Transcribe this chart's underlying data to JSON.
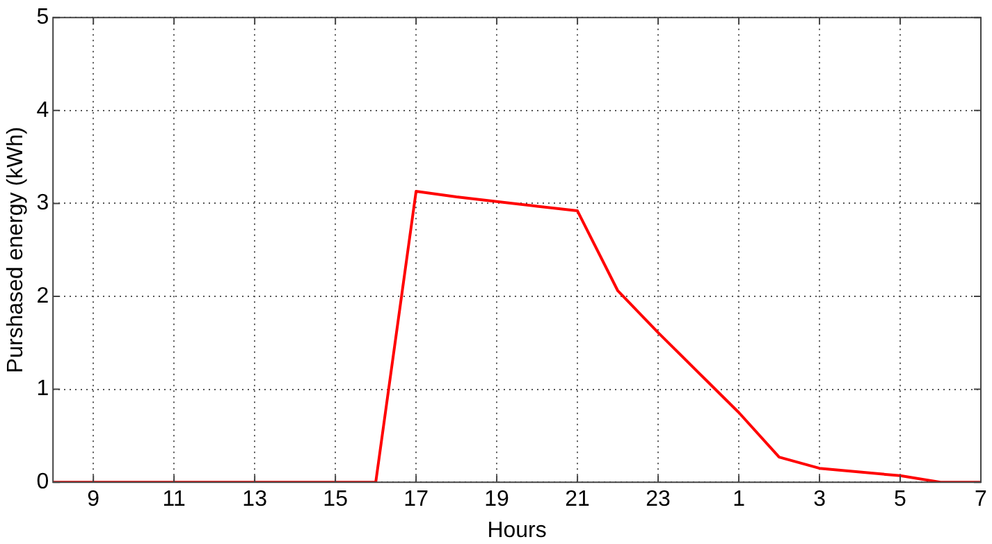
{
  "chart_data": {
    "type": "line",
    "xlabel": "Hours",
    "ylabel": "Purshased energy (kWh)",
    "categories": [
      null,
      "9",
      null,
      "11",
      null,
      "13",
      null,
      "15",
      null,
      "17",
      null,
      "19",
      null,
      "21",
      null,
      "23",
      null,
      "1",
      null,
      "3",
      null,
      "5",
      null,
      "7"
    ],
    "series": [
      {
        "color": "#ff0000",
        "values": [
          0,
          0,
          0,
          0,
          0,
          0,
          0,
          0,
          0,
          3.13,
          3.07,
          3.02,
          2.97,
          2.92,
          2.06,
          1.61,
          1.18,
          0.75,
          0.27,
          0.15,
          0.11,
          0.07,
          0,
          0
        ]
      }
    ],
    "ylim": [
      0,
      5
    ],
    "yticks": [
      0,
      1,
      2,
      3,
      4,
      5
    ],
    "grid": true,
    "marker": "none",
    "line_style": "solid"
  }
}
